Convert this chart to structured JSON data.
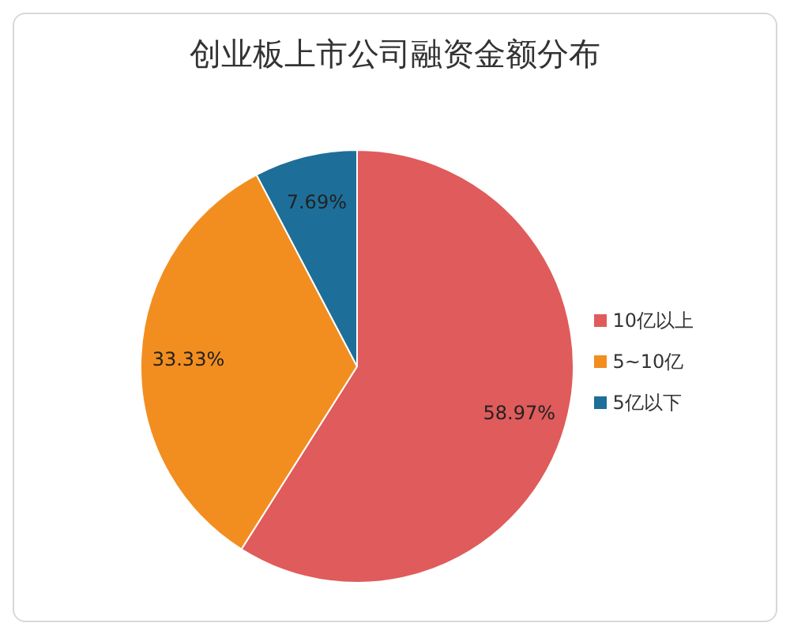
{
  "chart_data": {
    "type": "pie",
    "title": "创业板上市公司融资金额分布",
    "categories": [
      "10亿以上",
      "5~10亿",
      "5亿以下"
    ],
    "values": [
      58.97,
      33.33,
      7.69
    ],
    "colors": [
      "#e05b5b",
      "#f28e1f",
      "#1d6f99"
    ],
    "value_labels": [
      "58.97%",
      "33.33%",
      "7.69%"
    ],
    "legend": "right"
  }
}
